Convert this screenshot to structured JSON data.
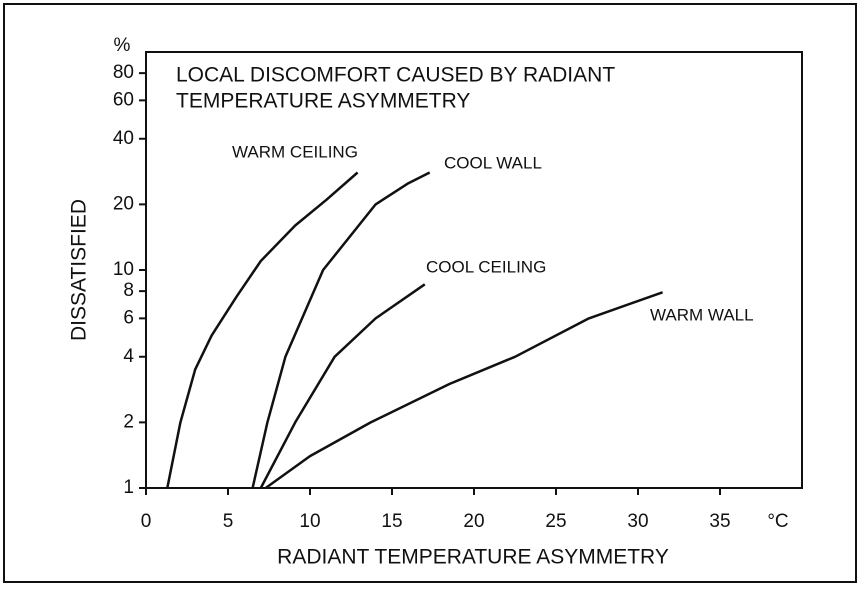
{
  "chart_data": {
    "type": "line",
    "title": [
      "LOCAL DISCOMFORT CAUSED BY RADIANT",
      "TEMPERATURE ASYMMETRY"
    ],
    "xlabel": "RADIANT TEMPERATURE ASYMMETRY",
    "ylabel": "DISSATISFIED",
    "x_unit": "°C",
    "y_unit": "%",
    "xlim": [
      0,
      40
    ],
    "xticks": [
      0,
      5,
      10,
      15,
      20,
      25,
      30,
      35
    ],
    "ylim": [
      1,
      100
    ],
    "yscale": "log",
    "yticks": [
      1,
      2,
      4,
      6,
      8,
      10,
      20,
      40,
      60,
      80
    ],
    "series": [
      {
        "name": "WARM CEILING",
        "color": "#111111",
        "x": [
          1.3,
          2.1,
          3.0,
          4.0,
          5.5,
          7.0,
          9.1,
          11.0,
          12.9
        ],
        "values": [
          1,
          2,
          3.5,
          5,
          7.5,
          11,
          16,
          21,
          28
        ]
      },
      {
        "name": "COOL WALL",
        "color": "#111111",
        "x": [
          6.5,
          7.4,
          8.5,
          10.8,
          14.0,
          16.0,
          17.3
        ],
        "values": [
          1,
          2,
          4,
          10,
          20,
          25,
          28
        ]
      },
      {
        "name": "COOL CEILING",
        "color": "#111111",
        "x": [
          7.0,
          9.1,
          11.5,
          14.0,
          17.0
        ],
        "values": [
          1,
          2,
          4,
          6,
          8.6
        ]
      },
      {
        "name": "WARM WALL",
        "color": "#111111",
        "x": [
          7.3,
          10.0,
          13.7,
          18.5,
          22.5,
          27.0,
          31.5
        ],
        "values": [
          1,
          1.4,
          2,
          3,
          4,
          6,
          7.9
        ]
      }
    ]
  }
}
